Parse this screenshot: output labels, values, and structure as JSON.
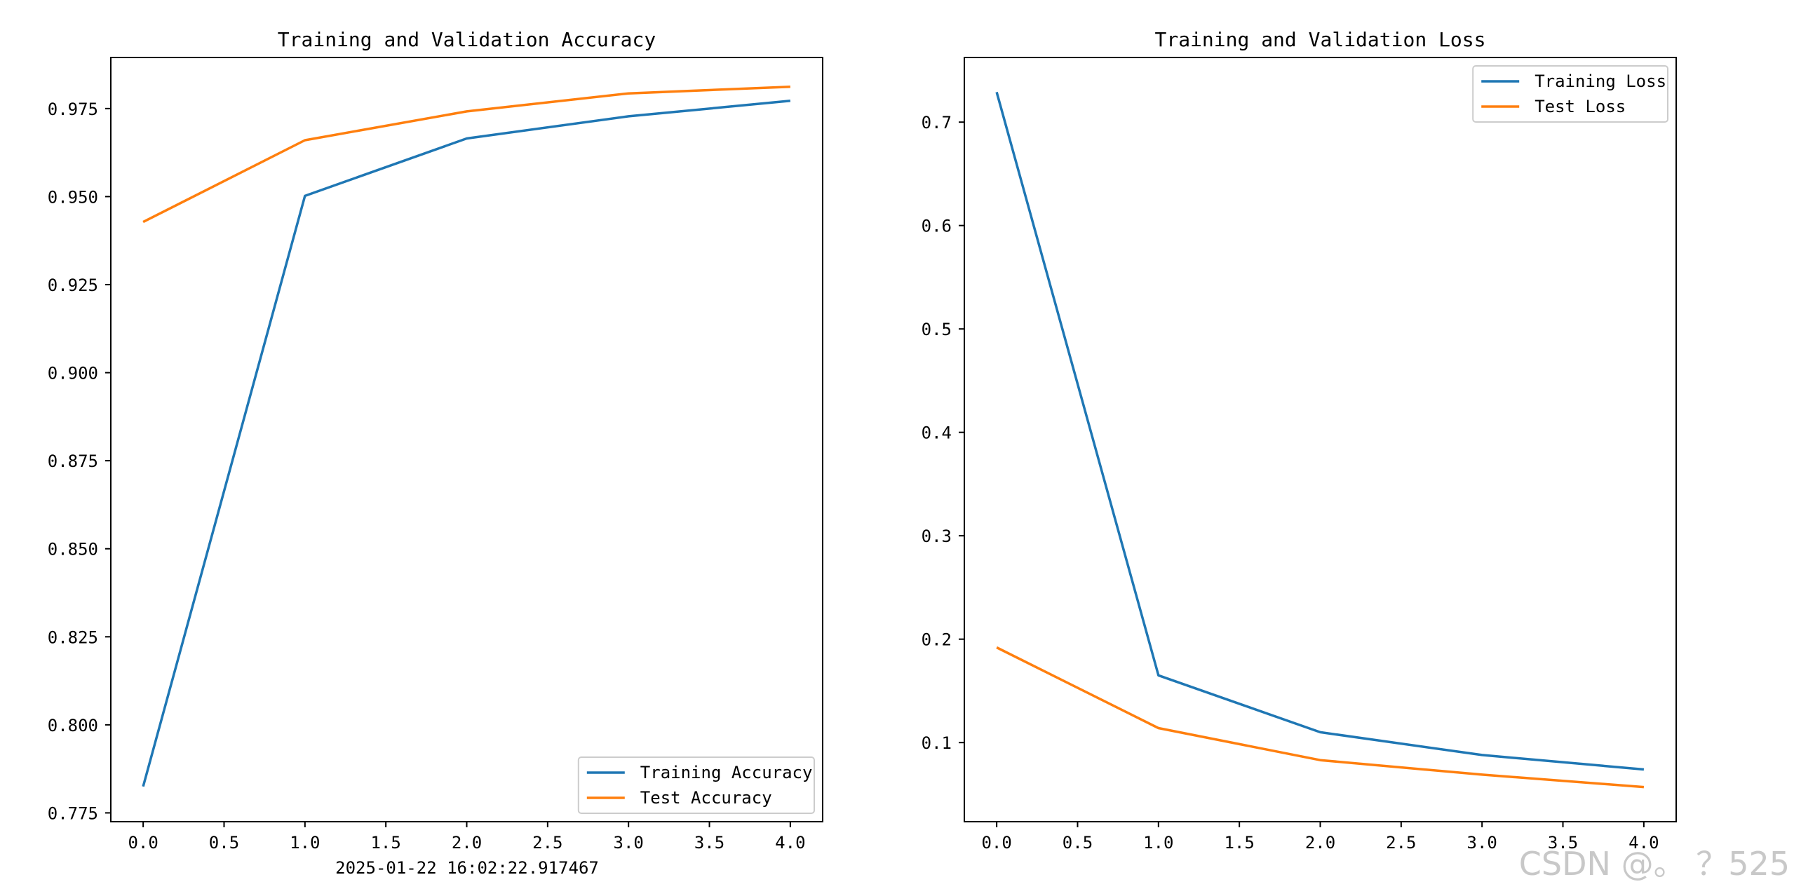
{
  "timestamp": "2025-01-22 16:02:22.917467",
  "watermark": "CSDN @。 ？525",
  "colors": {
    "training": "#1f77b4",
    "test": "#ff7f0e",
    "axis": "#000000",
    "background": "#ffffff"
  },
  "chart_data": [
    {
      "type": "line",
      "title": "Training and Validation Accuracy",
      "x": [
        0,
        1,
        2,
        3,
        4
      ],
      "series": [
        {
          "name": "Training Accuracy",
          "values": [
            0.7825,
            0.9502,
            0.9665,
            0.9728,
            0.9772
          ]
        },
        {
          "name": "Test Accuracy",
          "values": [
            0.9428,
            0.966,
            0.9742,
            0.9793,
            0.9812
          ]
        }
      ],
      "xlim": [
        -0.2,
        4.2
      ],
      "ylim": [
        0.7725,
        0.9895
      ],
      "xticks": [
        0,
        0.5,
        1,
        1.5,
        2,
        2.5,
        3,
        3.5,
        4
      ],
      "xtick_labels": [
        "0.0",
        "0.5",
        "1.0",
        "1.5",
        "2.0",
        "2.5",
        "3.0",
        "3.5",
        "4.0"
      ],
      "yticks": [
        0.775,
        0.8,
        0.825,
        0.85,
        0.875,
        0.9,
        0.925,
        0.95,
        0.975
      ],
      "ytick_labels": [
        "0.775",
        "0.800",
        "0.825",
        "0.850",
        "0.875",
        "0.900",
        "0.925",
        "0.950",
        "0.975"
      ],
      "legend": "lower right",
      "grid": false
    },
    {
      "type": "line",
      "title": "Training and Validation Loss",
      "x": [
        0,
        1,
        2,
        3,
        4
      ],
      "series": [
        {
          "name": "Training Loss",
          "values": [
            0.729,
            0.165,
            0.11,
            0.088,
            0.074
          ]
        },
        {
          "name": "Test Loss",
          "values": [
            0.192,
            0.114,
            0.083,
            0.069,
            0.057
          ]
        }
      ],
      "xlim": [
        -0.2,
        4.2
      ],
      "ylim": [
        0.0235,
        0.7625
      ],
      "xticks": [
        0,
        0.5,
        1,
        1.5,
        2,
        2.5,
        3,
        3.5,
        4
      ],
      "xtick_labels": [
        "0.0",
        "0.5",
        "1.0",
        "1.5",
        "2.0",
        "2.5",
        "3.0",
        "3.5",
        "4.0"
      ],
      "yticks": [
        0.1,
        0.2,
        0.3,
        0.4,
        0.5,
        0.6,
        0.7
      ],
      "ytick_labels": [
        "0.1",
        "0.2",
        "0.3",
        "0.4",
        "0.5",
        "0.6",
        "0.7"
      ],
      "legend": "upper right",
      "grid": false
    }
  ]
}
